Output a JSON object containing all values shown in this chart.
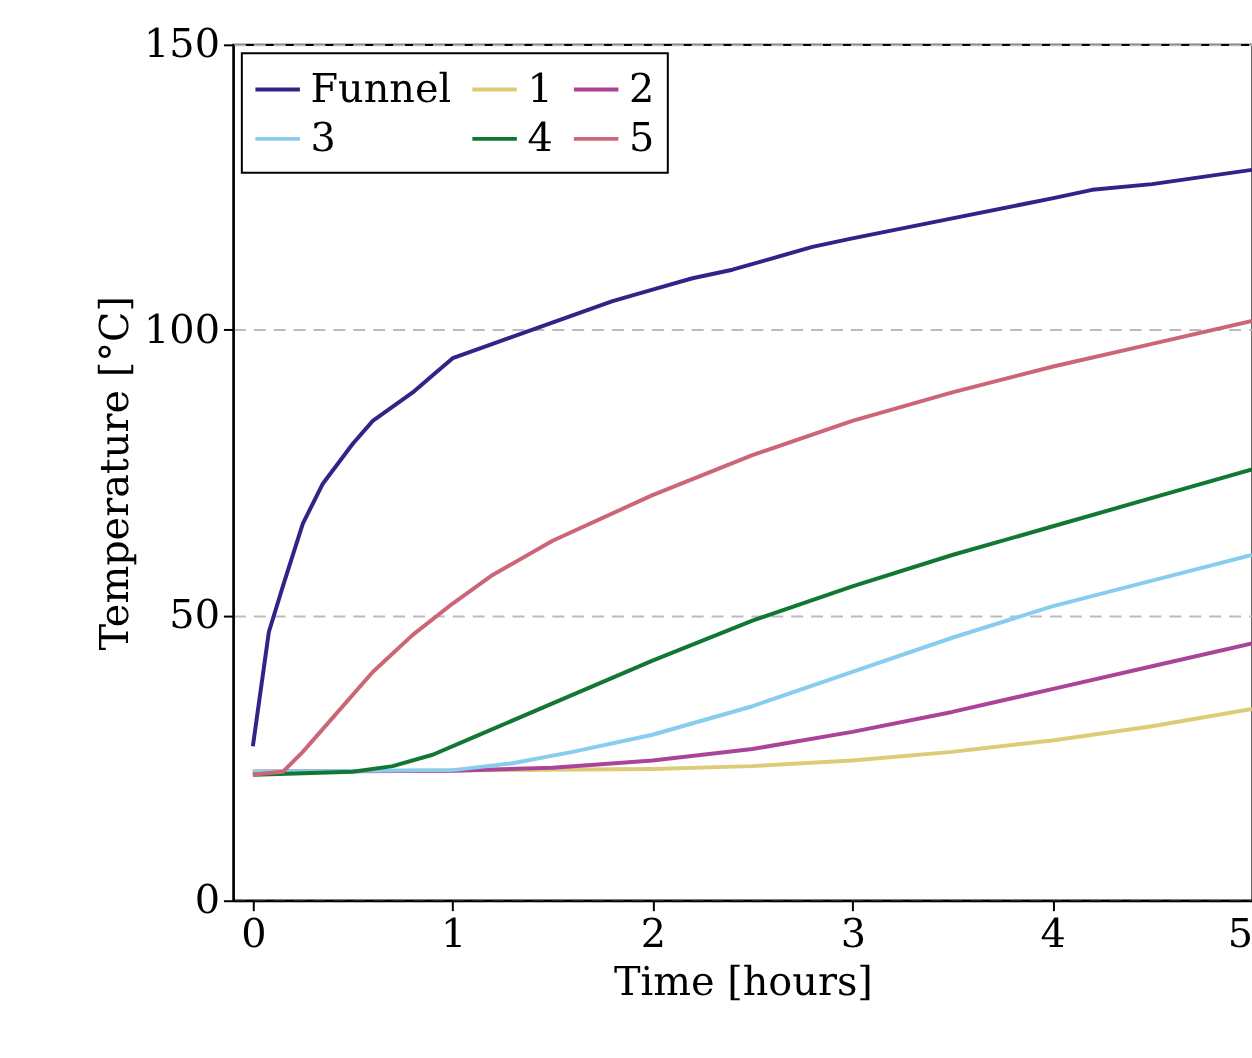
{
  "chart_data": {
    "type": "line",
    "xlabel": "Time [hours]",
    "ylabel": "Temperature [°C]",
    "xlim": [
      -0.1,
      5
    ],
    "ylim": [
      0,
      150
    ],
    "xticks": [
      0,
      1,
      2,
      3,
      4,
      5
    ],
    "yticks": [
      0,
      50,
      100,
      150
    ],
    "grid": "y",
    "legend": "top left",
    "marker": "none",
    "line_style": "solid",
    "series": [
      {
        "name": "Funnel",
        "color": "#332288",
        "x": [
          0,
          0.08,
          0.15,
          0.25,
          0.35,
          0.5,
          0.6,
          0.8,
          0.9,
          1,
          1.2,
          1.4,
          1.6,
          1.8,
          2,
          2.2,
          2.4,
          2.6,
          2.8,
          3,
          3.5,
          4,
          4.2,
          4.5,
          5
        ],
        "values": [
          27,
          47,
          55,
          66,
          73,
          80,
          84,
          89,
          92,
          95,
          97.5,
          100,
          102.5,
          105,
          107,
          109,
          110.5,
          112.5,
          114.5,
          116,
          119.5,
          123,
          124.5,
          125.5,
          128
        ]
      },
      {
        "name": "1",
        "color": "#ddcc77",
        "x": [
          0,
          2,
          2.5,
          3,
          3.5,
          4,
          4.5,
          5
        ],
        "values": [
          22.5,
          23,
          23.5,
          24.5,
          26,
          28,
          30.5,
          33.5
        ]
      },
      {
        "name": "2",
        "color": "#aa4499",
        "x": [
          0,
          1,
          1.5,
          2,
          2.5,
          3,
          3.5,
          4,
          4.5,
          5
        ],
        "values": [
          22.5,
          22.7,
          23.2,
          24.5,
          26.5,
          29.5,
          33,
          37,
          41,
          45
        ]
      },
      {
        "name": "3",
        "color": "#88ccee",
        "x": [
          0,
          1,
          1.3,
          1.6,
          2,
          2.5,
          3,
          3.5,
          4,
          4.5,
          5
        ],
        "values": [
          22.5,
          22.8,
          24,
          26,
          29,
          34,
          40,
          46,
          51.5,
          56,
          60.5
        ]
      },
      {
        "name": "4",
        "color": "#117733",
        "x": [
          0,
          0.5,
          0.7,
          0.9,
          1.1,
          1.5,
          2,
          2.5,
          3,
          3.5,
          4,
          4.5,
          5
        ],
        "values": [
          22,
          22.5,
          23.5,
          25.5,
          28.5,
          34.5,
          42,
          49,
          55,
          60.5,
          65.5,
          70.5,
          75.5
        ]
      },
      {
        "name": "5",
        "color": "#cc6677",
        "x": [
          0,
          0.15,
          0.25,
          0.4,
          0.6,
          0.8,
          1,
          1.2,
          1.5,
          2,
          2.5,
          3,
          3.5,
          4,
          4.5,
          5
        ],
        "values": [
          22,
          22.5,
          26,
          32,
          40,
          46.5,
          52,
          57,
          63,
          71,
          78,
          84,
          89,
          93.5,
          97.5,
          101.5
        ]
      }
    ]
  }
}
